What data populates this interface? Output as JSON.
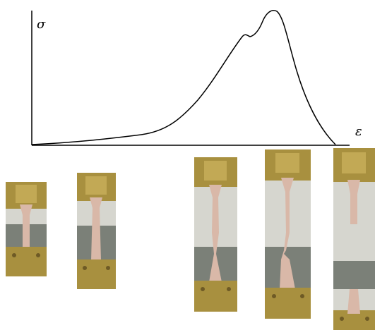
{
  "axes": {
    "y_label": "σ",
    "x_label": "ε"
  }
}
